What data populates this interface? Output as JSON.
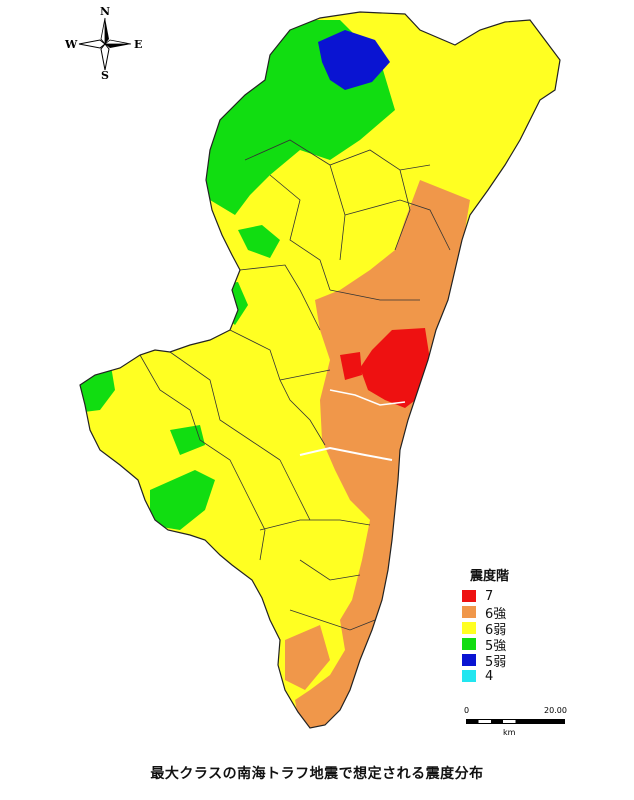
{
  "compass": {
    "north": "N",
    "south": "S",
    "east": "E",
    "west": "W"
  },
  "legend": {
    "title": "震度階",
    "items": [
      {
        "label": "7",
        "color": "#ee1111"
      },
      {
        "label": "6強",
        "color": "#f0974a"
      },
      {
        "label": "6弱",
        "color": "#ffff22"
      },
      {
        "label": "5強",
        "color": "#11dd11"
      },
      {
        "label": "5弱",
        "color": "#0a14d2"
      },
      {
        "label": "4",
        "color": "#22e6f0"
      }
    ]
  },
  "scale": {
    "start": "0",
    "end": "20.00",
    "unit": "km"
  },
  "caption": "最大クラスの南海トラフ地震で想定される震度分布"
}
